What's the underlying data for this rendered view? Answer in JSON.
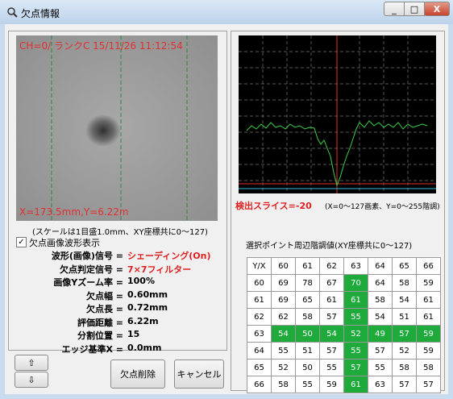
{
  "window": {
    "title": "欠点情報"
  },
  "image": {
    "overlay_top": "CH=0/ ランクC 15/11/26 11:12:54",
    "overlay_bottom": "X=173.5mm,Y=6.22m",
    "caption": "(スケールは1目盛1.0mm、XY座標共に0〜127)"
  },
  "checkbox": {
    "label": "欠点画像波形表示",
    "checked": true
  },
  "info": [
    {
      "label": "波形(画像)信号 =",
      "value": "シェーディング(On)",
      "color": "#e02020"
    },
    {
      "label": "欠点判定信号 =",
      "value": "7×7フィルター",
      "color": "#e02020"
    },
    {
      "label": "画像Yズーム率 =",
      "value": "100%",
      "color": "#000000"
    },
    {
      "label": "欠点幅 =",
      "value": "0.60mm",
      "color": "#000000"
    },
    {
      "label": "欠点長 =",
      "value": "0.72mm",
      "color": "#000000"
    },
    {
      "label": "評価距離 =",
      "value": "6.22m",
      "color": "#000000"
    },
    {
      "label": "分割位置 =",
      "value": "15",
      "color": "#000000"
    },
    {
      "label": "エッジ基準X =",
      "value": "0.0mm",
      "color": "#000000"
    }
  ],
  "buttons": {
    "delete": "欠点削除",
    "cancel": "キャンセル"
  },
  "graph": {
    "slice_label": "検出スライス=-20",
    "range_note": "(X=0〜127画素、Y=0〜255階調)"
  },
  "table": {
    "title": "選択ポイント周辺階調値(XY座標共に0〜127)",
    "header": [
      "Y/X",
      60,
      61,
      62,
      63,
      64,
      65,
      66
    ],
    "rows": [
      [
        60,
        69,
        78,
        67,
        70,
        64,
        58,
        59
      ],
      [
        61,
        69,
        65,
        61,
        61,
        58,
        54,
        61
      ],
      [
        62,
        62,
        58,
        57,
        55,
        54,
        51,
        61
      ],
      [
        63,
        54,
        50,
        54,
        52,
        49,
        57,
        59
      ],
      [
        64,
        55,
        51,
        57,
        55,
        57,
        52,
        59
      ],
      [
        65,
        52,
        50,
        55,
        57,
        55,
        58,
        58
      ],
      [
        66,
        58,
        55,
        59,
        61,
        63,
        57,
        57
      ]
    ]
  }
}
